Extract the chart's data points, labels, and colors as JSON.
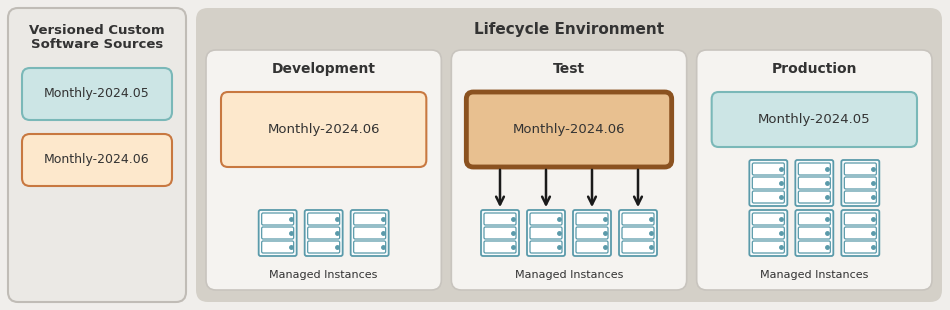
{
  "bg_color": "#f0eeeb",
  "left_panel_bg": "#ebe9e5",
  "left_panel_border": "#c0bcb6",
  "lifecycle_bg": "#d4d0c8",
  "stage_bg": "#f5f3f0",
  "stage_border": "#c8c4be",
  "box_teal_fill": "#cce5e5",
  "box_teal_border": "#7ab8b8",
  "box_orange_fill": "#fde8cc",
  "box_orange_border": "#c87840",
  "box_orange_fill_dark": "#e8c090",
  "box_orange_border_dark": "#8b5220",
  "title_left_line1": "Versioned Custom",
  "title_left_line2": "Software Sources",
  "title_lifecycle": "Lifecycle Environment",
  "stage_titles": [
    "Development",
    "Test",
    "Production"
  ],
  "box_labels": {
    "left_teal": "Monthly-2024.05",
    "left_orange": "Monthly-2024.06",
    "dev": "Monthly-2024.06",
    "test": "Monthly-2024.06",
    "prod": "Monthly-2024.05"
  },
  "managed_label": "Managed Instances",
  "arrow_color": "#1a1a1a",
  "text_color": "#333333",
  "server_color": "#5a9aaa",
  "server_fill": "#f8fbfc"
}
